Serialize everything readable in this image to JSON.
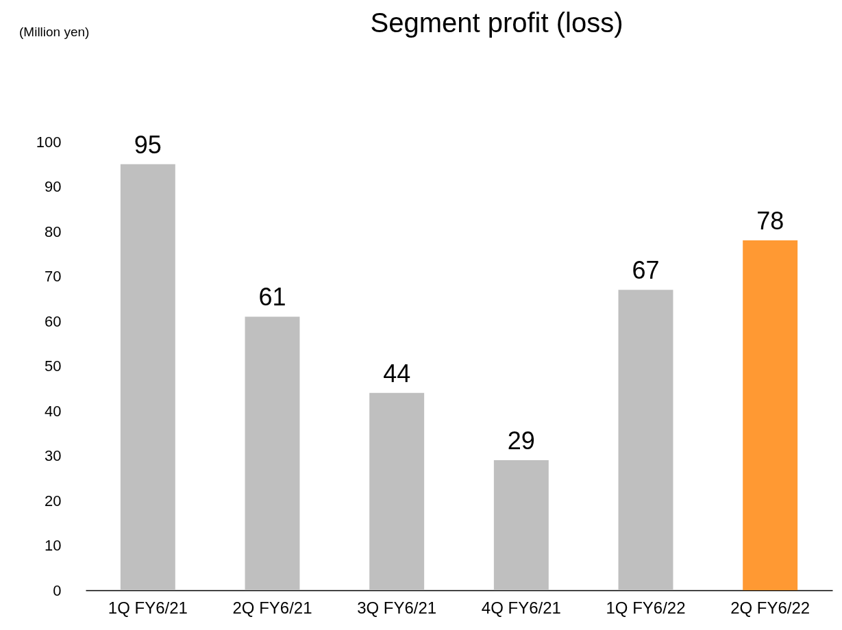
{
  "chart_data": {
    "type": "bar",
    "title": "Segment profit (loss)",
    "annotations": [
      "(Million yen)"
    ],
    "categories": [
      "1Q FY6/21",
      "2Q FY6/21",
      "3Q FY6/21",
      "4Q FY6/21",
      "1Q FY6/22",
      "2Q FY6/22"
    ],
    "values": [
      95,
      61,
      44,
      29,
      67,
      78
    ],
    "colors": [
      "#bfbfbf",
      "#bfbfbf",
      "#bfbfbf",
      "#bfbfbf",
      "#bfbfbf",
      "#ff9933"
    ],
    "ylim": [
      0,
      100
    ],
    "yticks": [
      0,
      10,
      20,
      30,
      40,
      50,
      60,
      70,
      80,
      90,
      100
    ],
    "data_labels": true
  }
}
